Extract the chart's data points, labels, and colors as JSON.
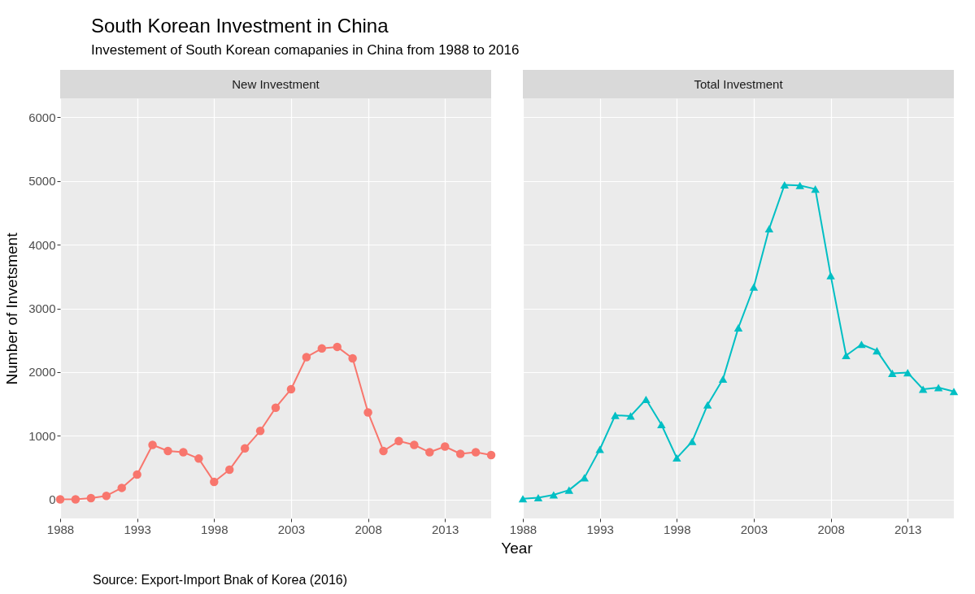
{
  "chart_data": [
    {
      "type": "line",
      "title": "South Korean Investment in China",
      "subtitle": "Investement of South Korean comapanies in China from 1988 to 2016",
      "ylabel": "Number of Invetsment",
      "annotations": [
        "Source: Export-Import Bnak of Korea (2016)"
      ],
      "x": [
        1988,
        1989,
        1990,
        1991,
        1992,
        1993,
        1994,
        1995,
        1996,
        1997,
        1998,
        1999,
        2000,
        2001,
        2002,
        2003,
        2004,
        2005,
        2006,
        2007,
        2008,
        2009,
        2010,
        2011,
        2012,
        2013,
        2014,
        2015,
        2016
      ],
      "series": [
        {
          "name": "New Investment",
          "color": "#f8766d",
          "values": [
            0,
            0,
            20,
            55,
            180,
            390,
            855,
            760,
            740,
            640,
            275,
            465,
            800,
            1075,
            1440,
            1730,
            2235,
            2370,
            2395,
            2215,
            1365,
            760,
            915,
            855,
            740,
            830,
            715,
            740,
            695
          ]
        }
      ],
      "xlim": [
        1988,
        2016
      ],
      "xticks": [
        1988,
        1993,
        1998,
        2003,
        2008,
        2013
      ],
      "ylim": [
        -300,
        6300
      ],
      "yticks": [
        0,
        1000,
        2000,
        3000,
        4000,
        5000,
        6000
      ],
      "grid": true,
      "marker": "circle",
      "line_style": "solid"
    },
    {
      "type": "line",
      "xlabel": "Year",
      "x": [
        1988,
        1989,
        1990,
        1991,
        1992,
        1993,
        1994,
        1995,
        1996,
        1997,
        1998,
        1999,
        2000,
        2001,
        2002,
        2003,
        2004,
        2005,
        2006,
        2007,
        2008,
        2009,
        2010,
        2011,
        2012,
        2013,
        2014,
        2015,
        2016
      ],
      "series": [
        {
          "name": "Total Investment",
          "color": "#00bfc4",
          "values": [
            10,
            25,
            70,
            145,
            340,
            785,
            1320,
            1310,
            1570,
            1175,
            650,
            910,
            1485,
            1890,
            2695,
            3335,
            4250,
            4940,
            4930,
            4875,
            3515,
            2260,
            2435,
            2335,
            1980,
            1990,
            1730,
            1755,
            1695
          ]
        }
      ],
      "xlim": [
        1988,
        2016
      ],
      "xticks": [
        1988,
        1993,
        1998,
        2003,
        2008,
        2013
      ],
      "ylim": [
        -300,
        6300
      ],
      "yticks": [
        0,
        1000,
        2000,
        3000,
        4000,
        5000,
        6000
      ],
      "grid": true,
      "marker": "triangle",
      "line_style": "solid",
      "tick_labels": "x"
    }
  ]
}
